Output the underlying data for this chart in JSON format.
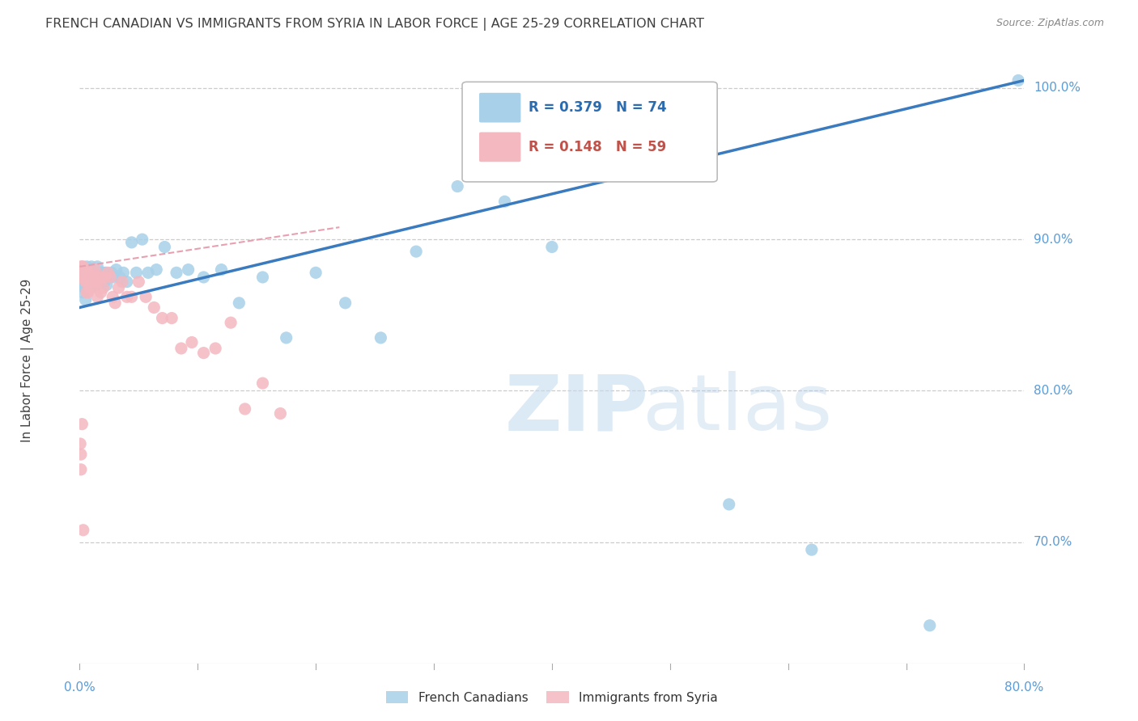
{
  "title": "FRENCH CANADIAN VS IMMIGRANTS FROM SYRIA IN LABOR FORCE | AGE 25-29 CORRELATION CHART",
  "source": "Source: ZipAtlas.com",
  "ylabel": "In Labor Force | Age 25-29",
  "x_min": 0.0,
  "x_max": 0.8,
  "y_min": 0.62,
  "y_max": 1.02,
  "right_yticks": [
    1.0,
    0.9,
    0.8,
    0.7
  ],
  "right_yticklabels": [
    "100.0%",
    "90.0%",
    "80.0%",
    "70.0%"
  ],
  "blue_R": 0.379,
  "blue_N": 74,
  "pink_R": 0.148,
  "pink_N": 59,
  "blue_color": "#a8d0e8",
  "pink_color": "#f4b8c0",
  "blue_line_color": "#3a7abf",
  "pink_line_color": "#e8a0b0",
  "blue_line_x0": 0.0,
  "blue_line_y0": 0.855,
  "blue_line_x1": 0.8,
  "blue_line_y1": 1.005,
  "pink_line_x0": 0.0,
  "pink_line_y0": 0.882,
  "pink_line_x1": 0.22,
  "pink_line_y1": 0.908,
  "watermark_zip": "ZIP",
  "watermark_atlas": "atlas",
  "blue_label": "French Canadians",
  "pink_label": "Immigrants from Syria",
  "blue_scatter_x": [
    0.001,
    0.001,
    0.002,
    0.002,
    0.003,
    0.003,
    0.003,
    0.004,
    0.004,
    0.005,
    0.005,
    0.005,
    0.006,
    0.006,
    0.006,
    0.007,
    0.007,
    0.007,
    0.008,
    0.008,
    0.008,
    0.009,
    0.009,
    0.01,
    0.01,
    0.011,
    0.011,
    0.012,
    0.012,
    0.013,
    0.013,
    0.014,
    0.014,
    0.015,
    0.015,
    0.016,
    0.017,
    0.018,
    0.019,
    0.02,
    0.021,
    0.022,
    0.023,
    0.025,
    0.027,
    0.029,
    0.031,
    0.034,
    0.037,
    0.04,
    0.044,
    0.048,
    0.053,
    0.058,
    0.065,
    0.072,
    0.082,
    0.092,
    0.105,
    0.12,
    0.135,
    0.155,
    0.175,
    0.2,
    0.225,
    0.255,
    0.285,
    0.32,
    0.36,
    0.4,
    0.55,
    0.62,
    0.72,
    0.795
  ],
  "blue_scatter_y": [
    0.875,
    0.88,
    0.865,
    0.876,
    0.872,
    0.88,
    0.87,
    0.868,
    0.875,
    0.86,
    0.872,
    0.878,
    0.875,
    0.868,
    0.882,
    0.87,
    0.875,
    0.88,
    0.868,
    0.875,
    0.872,
    0.878,
    0.868,
    0.875,
    0.882,
    0.872,
    0.878,
    0.875,
    0.88,
    0.872,
    0.878,
    0.875,
    0.87,
    0.875,
    0.882,
    0.878,
    0.872,
    0.878,
    0.875,
    0.878,
    0.872,
    0.878,
    0.87,
    0.875,
    0.878,
    0.875,
    0.88,
    0.875,
    0.878,
    0.872,
    0.898,
    0.878,
    0.9,
    0.878,
    0.88,
    0.895,
    0.878,
    0.88,
    0.875,
    0.88,
    0.858,
    0.875,
    0.835,
    0.878,
    0.858,
    0.835,
    0.892,
    0.935,
    0.925,
    0.895,
    0.725,
    0.695,
    0.645,
    1.005
  ],
  "pink_scatter_x": [
    0.0005,
    0.001,
    0.001,
    0.0015,
    0.002,
    0.002,
    0.003,
    0.003,
    0.004,
    0.004,
    0.005,
    0.005,
    0.006,
    0.006,
    0.007,
    0.007,
    0.008,
    0.008,
    0.009,
    0.009,
    0.01,
    0.01,
    0.011,
    0.012,
    0.013,
    0.014,
    0.015,
    0.016,
    0.017,
    0.018,
    0.019,
    0.02,
    0.022,
    0.024,
    0.026,
    0.028,
    0.03,
    0.033,
    0.036,
    0.04,
    0.044,
    0.05,
    0.056,
    0.063,
    0.07,
    0.078,
    0.086,
    0.095,
    0.105,
    0.115,
    0.128,
    0.14,
    0.155,
    0.17,
    0.0005,
    0.001,
    0.001,
    0.002,
    0.003
  ],
  "pink_scatter_y": [
    0.878,
    0.882,
    0.875,
    0.878,
    0.882,
    0.875,
    0.878,
    0.882,
    0.875,
    0.878,
    0.872,
    0.878,
    0.865,
    0.872,
    0.878,
    0.865,
    0.872,
    0.875,
    0.868,
    0.875,
    0.868,
    0.875,
    0.878,
    0.872,
    0.88,
    0.872,
    0.862,
    0.872,
    0.875,
    0.865,
    0.875,
    0.868,
    0.875,
    0.878,
    0.875,
    0.862,
    0.858,
    0.868,
    0.872,
    0.862,
    0.862,
    0.872,
    0.862,
    0.855,
    0.848,
    0.848,
    0.828,
    0.832,
    0.825,
    0.828,
    0.845,
    0.788,
    0.805,
    0.785,
    0.765,
    0.758,
    0.748,
    0.778,
    0.708
  ],
  "grid_color": "#cccccc",
  "axis_color": "#5b9bd5",
  "title_color": "#404040",
  "legend_text_color_blue": "#2b6cb0",
  "legend_text_color_pink": "#c0524a",
  "watermark_color": "#c6dcf0",
  "watermark_alpha": 0.6
}
